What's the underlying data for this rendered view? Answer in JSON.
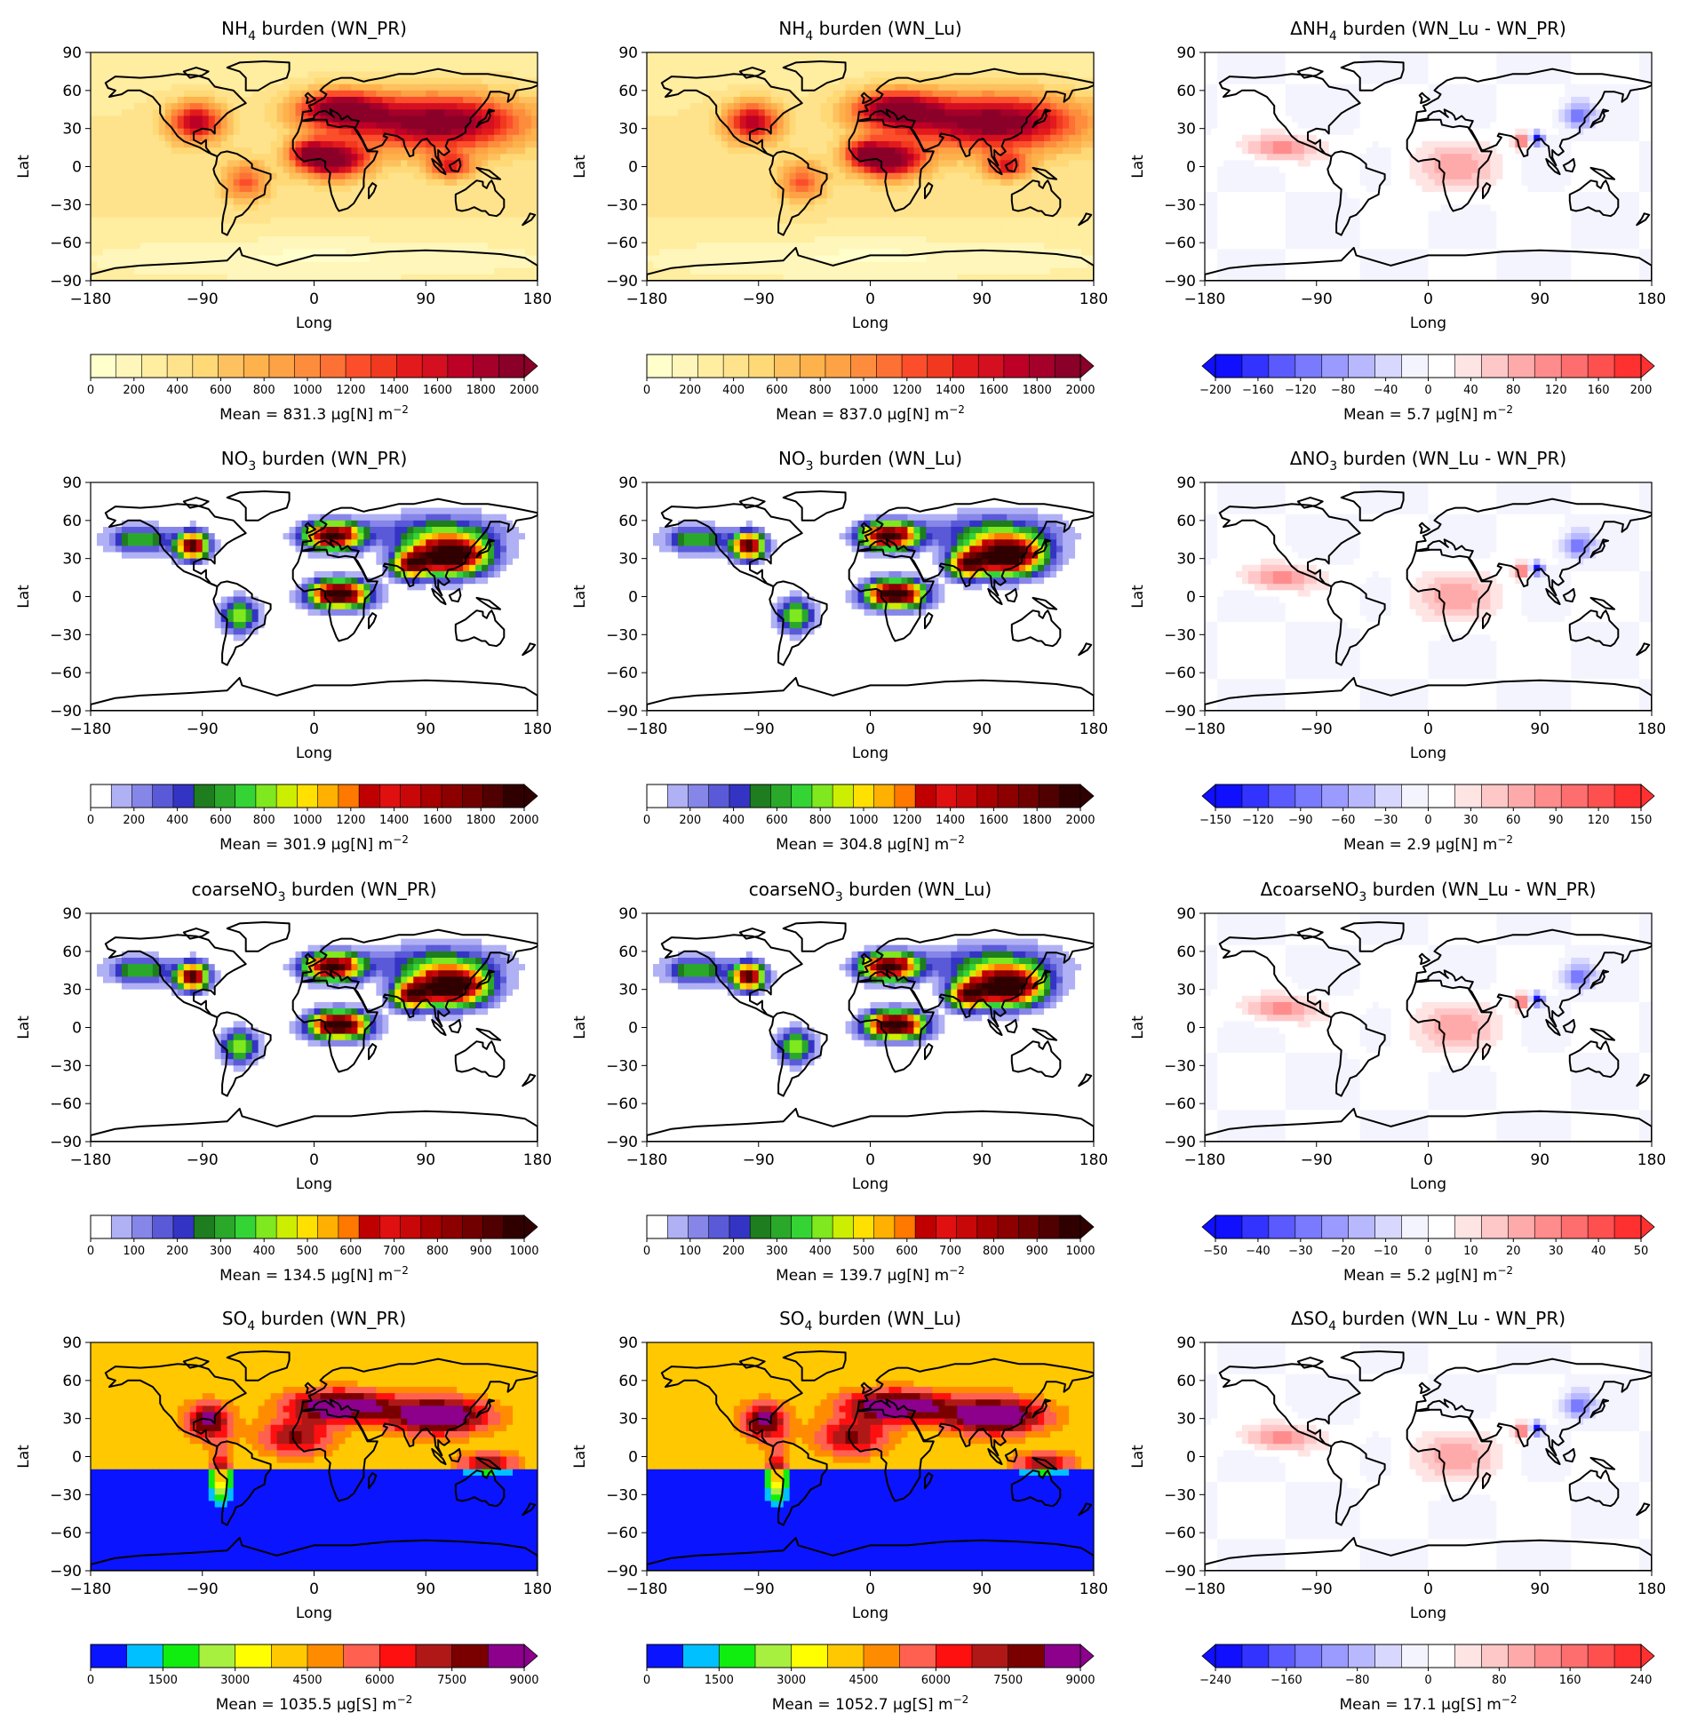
{
  "figure": {
    "panels": [
      {
        "title_pre": "NH",
        "title_sub": "4",
        "title_post": " burden (WN_PR)",
        "kind": "nh",
        "ticks": [
          "0",
          "200",
          "400",
          "600",
          "800",
          "1000",
          "1200",
          "1400",
          "1600",
          "1800",
          "2000"
        ],
        "mean": "Mean = 831.3 µg[N] m",
        "mean_exp": "−2"
      },
      {
        "title_pre": "NH",
        "title_sub": "4",
        "title_post": " burden (WN_Lu)",
        "kind": "nh",
        "ticks": [
          "0",
          "200",
          "400",
          "600",
          "800",
          "1000",
          "1200",
          "1400",
          "1600",
          "1800",
          "2000"
        ],
        "mean": "Mean = 837.0 µg[N] m",
        "mean_exp": "−2"
      },
      {
        "title_pre": "ΔNH",
        "title_sub": "4",
        "title_post": " burden (WN_Lu - WN_PR)",
        "kind": "diff",
        "ticks": [
          "−200",
          "−160",
          "−120",
          "−80",
          "−40",
          "0",
          "40",
          "80",
          "120",
          "160",
          "200"
        ],
        "mean": "Mean = 5.7 µg[N] m",
        "mean_exp": "−2"
      },
      {
        "title_pre": "NO",
        "title_sub": "3",
        "title_post": " burden (WN_PR)",
        "kind": "no3",
        "ticks": [
          "0",
          "200",
          "400",
          "600",
          "800",
          "1000",
          "1200",
          "1400",
          "1600",
          "1800",
          "2000"
        ],
        "mean": "Mean = 301.9 µg[N] m",
        "mean_exp": "−2"
      },
      {
        "title_pre": "NO",
        "title_sub": "3",
        "title_post": " burden (WN_Lu)",
        "kind": "no3",
        "ticks": [
          "0",
          "200",
          "400",
          "600",
          "800",
          "1000",
          "1200",
          "1400",
          "1600",
          "1800",
          "2000"
        ],
        "mean": "Mean = 304.8 µg[N] m",
        "mean_exp": "−2"
      },
      {
        "title_pre": "ΔNO",
        "title_sub": "3",
        "title_post": " burden (WN_Lu - WN_PR)",
        "kind": "diff",
        "ticks": [
          "−150",
          "−120",
          "−90",
          "−60",
          "−30",
          "0",
          "30",
          "60",
          "90",
          "120",
          "150"
        ],
        "mean": "Mean = 2.9 µg[N] m",
        "mean_exp": "−2"
      },
      {
        "title_pre": "coarseNO",
        "title_sub": "3",
        "title_post": " burden (WN_PR)",
        "kind": "no3",
        "ticks": [
          "0",
          "100",
          "200",
          "300",
          "400",
          "500",
          "600",
          "700",
          "800",
          "900",
          "1000"
        ],
        "mean": "Mean = 134.5 µg[N] m",
        "mean_exp": "−2"
      },
      {
        "title_pre": "coarseNO",
        "title_sub": "3",
        "title_post": " burden (WN_Lu)",
        "kind": "no3",
        "ticks": [
          "0",
          "100",
          "200",
          "300",
          "400",
          "500",
          "600",
          "700",
          "800",
          "900",
          "1000"
        ],
        "mean": "Mean = 139.7 µg[N] m",
        "mean_exp": "−2"
      },
      {
        "title_pre": "ΔcoarseNO",
        "title_sub": "3",
        "title_post": " burden (WN_Lu - WN_PR)",
        "kind": "diff",
        "ticks": [
          "−50",
          "−40",
          "−30",
          "−20",
          "−10",
          "0",
          "10",
          "20",
          "30",
          "40",
          "50"
        ],
        "mean": "Mean = 5.2 µg[N] m",
        "mean_exp": "−2"
      },
      {
        "title_pre": "SO",
        "title_sub": "4",
        "title_post": " burden (WN_PR)",
        "kind": "so4",
        "ticks": [
          "0",
          "1500",
          "3000",
          "4500",
          "6000",
          "7500",
          "9000"
        ],
        "mean": "Mean = 1035.5 µg[S] m",
        "mean_exp": "−2"
      },
      {
        "title_pre": "SO",
        "title_sub": "4",
        "title_post": " burden (WN_Lu)",
        "kind": "so4",
        "ticks": [
          "0",
          "1500",
          "3000",
          "4500",
          "6000",
          "7500",
          "9000"
        ],
        "mean": "Mean = 1052.7 µg[S] m",
        "mean_exp": "−2"
      },
      {
        "title_pre": "ΔSO",
        "title_sub": "4",
        "title_post": " burden (WN_Lu - WN_PR)",
        "kind": "diff",
        "ticks": [
          "−240",
          "−160",
          "−80",
          "0",
          "80",
          "160",
          "240"
        ],
        "mean": "Mean = 17.1 µg[S] m",
        "mean_exp": "−2"
      }
    ],
    "xlabel": "Long",
    "ylabel": "Lat",
    "xticks": [
      "−180",
      "−90",
      "0",
      "90",
      "180"
    ],
    "yticks": [
      "90",
      "60",
      "30",
      "0",
      "−30",
      "−60",
      "−90"
    ]
  },
  "colors": {
    "nh": [
      "#ffffcc",
      "#fff6bb",
      "#ffeda0",
      "#ffe38c",
      "#fed976",
      "#fec15f",
      "#feb24c",
      "#fea246",
      "#fd8d3c",
      "#fd7134",
      "#fc4e2a",
      "#f0391f",
      "#e31a1c",
      "#d30f20",
      "#bd0026",
      "#a4002a",
      "#8a0028"
    ],
    "no3": [
      "#ffffff",
      "#b0b0f5",
      "#8686e8",
      "#5a5ad8",
      "#3434c4",
      "#1e7d1e",
      "#2aa82a",
      "#34d434",
      "#7fe81e",
      "#ccee00",
      "#ffe000",
      "#ffb000",
      "#ff7800",
      "#c00000",
      "#e01010",
      "#c80808",
      "#a80000",
      "#8c0000",
      "#700000",
      "#500000",
      "#300000"
    ],
    "so4": [
      "#0a14ff",
      "#00c0ff",
      "#10ee10",
      "#a8f040",
      "#ffff00",
      "#ffc800",
      "#ff8c00",
      "#ff6050",
      "#ff1010",
      "#b01818",
      "#7a0000",
      "#8c008c"
    ],
    "diff": [
      "#1010ff",
      "#3333ff",
      "#5a5aff",
      "#7a7aff",
      "#9a9aff",
      "#b8b8ff",
      "#d8d8ff",
      "#f4f4ff",
      "#ffffff",
      "#ffe4e4",
      "#ffc8c8",
      "#ffaaaa",
      "#ff8c8c",
      "#ff6e6e",
      "#ff5050",
      "#ff3030"
    ]
  },
  "chart_data": [
    {
      "type": "heatmap",
      "title": "NH4 burden (WN_PR)",
      "xlabel": "Long",
      "ylabel": "Lat",
      "xlim": [
        -180,
        180
      ],
      "ylim": [
        -90,
        90
      ],
      "colorbar_range": [
        0,
        2000
      ],
      "colorbar_ticks": [
        0,
        200,
        400,
        600,
        800,
        1000,
        1200,
        1400,
        1600,
        1800,
        2000
      ],
      "mean": 831.3,
      "unit": "µg[N] m−2"
    },
    {
      "type": "heatmap",
      "title": "NH4 burden (WN_Lu)",
      "xlabel": "Long",
      "ylabel": "Lat",
      "xlim": [
        -180,
        180
      ],
      "ylim": [
        -90,
        90
      ],
      "colorbar_range": [
        0,
        2000
      ],
      "colorbar_ticks": [
        0,
        200,
        400,
        600,
        800,
        1000,
        1200,
        1400,
        1600,
        1800,
        2000
      ],
      "mean": 837.0,
      "unit": "µg[N] m−2"
    },
    {
      "type": "heatmap",
      "title": "ΔNH4 burden (WN_Lu - WN_PR)",
      "xlabel": "Long",
      "ylabel": "Lat",
      "xlim": [
        -180,
        180
      ],
      "ylim": [
        -90,
        90
      ],
      "colorbar_range": [
        -200,
        200
      ],
      "colorbar_ticks": [
        -200,
        -160,
        -120,
        -80,
        -40,
        0,
        40,
        80,
        120,
        160,
        200
      ],
      "mean": 5.7,
      "unit": "µg[N] m−2"
    },
    {
      "type": "heatmap",
      "title": "NO3 burden (WN_PR)",
      "xlabel": "Long",
      "ylabel": "Lat",
      "xlim": [
        -180,
        180
      ],
      "ylim": [
        -90,
        90
      ],
      "colorbar_range": [
        0,
        2000
      ],
      "colorbar_ticks": [
        0,
        200,
        400,
        600,
        800,
        1000,
        1200,
        1400,
        1600,
        1800,
        2000
      ],
      "mean": 301.9,
      "unit": "µg[N] m−2"
    },
    {
      "type": "heatmap",
      "title": "NO3 burden (WN_Lu)",
      "xlabel": "Long",
      "ylabel": "Lat",
      "xlim": [
        -180,
        180
      ],
      "ylim": [
        -90,
        90
      ],
      "colorbar_range": [
        0,
        2000
      ],
      "colorbar_ticks": [
        0,
        200,
        400,
        600,
        800,
        1000,
        1200,
        1400,
        1600,
        1800,
        2000
      ],
      "mean": 304.8,
      "unit": "µg[N] m−2"
    },
    {
      "type": "heatmap",
      "title": "ΔNO3 burden (WN_Lu - WN_PR)",
      "xlabel": "Long",
      "ylabel": "Lat",
      "xlim": [
        -180,
        180
      ],
      "ylim": [
        -90,
        90
      ],
      "colorbar_range": [
        -150,
        150
      ],
      "colorbar_ticks": [
        -150,
        -120,
        -90,
        -60,
        -30,
        0,
        30,
        60,
        90,
        120,
        150
      ],
      "mean": 2.9,
      "unit": "µg[N] m−2"
    },
    {
      "type": "heatmap",
      "title": "coarseNO3 burden (WN_PR)",
      "xlabel": "Long",
      "ylabel": "Lat",
      "xlim": [
        -180,
        180
      ],
      "ylim": [
        -90,
        90
      ],
      "colorbar_range": [
        0,
        1000
      ],
      "colorbar_ticks": [
        0,
        100,
        200,
        300,
        400,
        500,
        600,
        700,
        800,
        900,
        1000
      ],
      "mean": 134.5,
      "unit": "µg[N] m−2"
    },
    {
      "type": "heatmap",
      "title": "coarseNO3 burden (WN_Lu)",
      "xlabel": "Long",
      "ylabel": "Lat",
      "xlim": [
        -180,
        180
      ],
      "ylim": [
        -90,
        90
      ],
      "colorbar_range": [
        0,
        1000
      ],
      "colorbar_ticks": [
        0,
        100,
        200,
        300,
        400,
        500,
        600,
        700,
        800,
        900,
        1000
      ],
      "mean": 139.7,
      "unit": "µg[N] m−2"
    },
    {
      "type": "heatmap",
      "title": "ΔcoarseNO3 burden (WN_Lu - WN_PR)",
      "xlabel": "Long",
      "ylabel": "Lat",
      "xlim": [
        -180,
        180
      ],
      "ylim": [
        -90,
        90
      ],
      "colorbar_range": [
        -50,
        50
      ],
      "colorbar_ticks": [
        -50,
        -40,
        -30,
        -20,
        -10,
        0,
        10,
        20,
        30,
        40,
        50
      ],
      "mean": 5.2,
      "unit": "µg[N] m−2"
    },
    {
      "type": "heatmap",
      "title": "SO4 burden (WN_PR)",
      "xlabel": "Long",
      "ylabel": "Lat",
      "xlim": [
        -180,
        180
      ],
      "ylim": [
        -90,
        90
      ],
      "colorbar_range": [
        0,
        9000
      ],
      "colorbar_ticks": [
        0,
        1500,
        3000,
        4500,
        6000,
        7500,
        9000
      ],
      "mean": 1035.5,
      "unit": "µg[S] m−2"
    },
    {
      "type": "heatmap",
      "title": "SO4 burden (WN_Lu)",
      "xlabel": "Long",
      "ylabel": "Lat",
      "xlim": [
        -180,
        180
      ],
      "ylim": [
        -90,
        90
      ],
      "colorbar_range": [
        0,
        9000
      ],
      "colorbar_ticks": [
        0,
        1500,
        3000,
        4500,
        6000,
        7500,
        9000
      ],
      "mean": 1052.7,
      "unit": "µg[S] m−2"
    },
    {
      "type": "heatmap",
      "title": "ΔSO4 burden (WN_Lu - WN_PR)",
      "xlabel": "Long",
      "ylabel": "Lat",
      "xlim": [
        -180,
        180
      ],
      "ylim": [
        -90,
        90
      ],
      "colorbar_range": [
        -240,
        240
      ],
      "colorbar_ticks": [
        -240,
        -160,
        -80,
        0,
        80,
        160,
        240
      ],
      "mean": 17.1,
      "unit": "µg[S] m−2"
    }
  ]
}
